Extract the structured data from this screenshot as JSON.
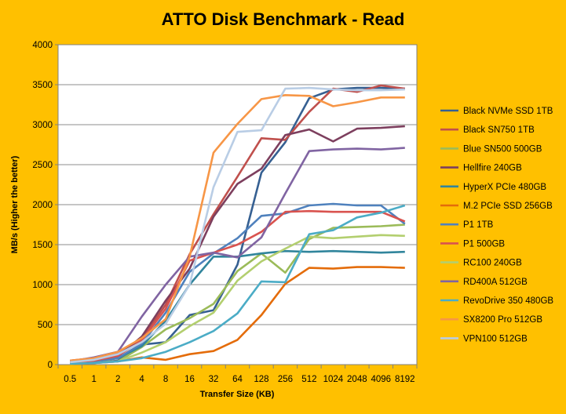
{
  "chart_data": {
    "type": "line",
    "title": "ATTO Disk Benchmark - Read",
    "xlabel": "Transfer Size (KB)",
    "ylabel": "MB/s (Higher the better)",
    "ylim": [
      0,
      4000
    ],
    "yticks": [
      "0",
      "500",
      "1000",
      "1500",
      "2000",
      "2500",
      "3000",
      "3500",
      "4000"
    ],
    "grid": true,
    "legend": "right",
    "categories": [
      "0.5",
      "1",
      "2",
      "4",
      "8",
      "16",
      "32",
      "64",
      "128",
      "256",
      "512",
      "1024",
      "2048",
      "4096",
      "8192"
    ],
    "series": [
      {
        "name": "Black NVMe SSD 1TB",
        "color": "#366092",
        "values": [
          10,
          20,
          50,
          250,
          280,
          620,
          680,
          1250,
          2400,
          2780,
          3330,
          3440,
          3460,
          3460,
          3450
        ]
      },
      {
        "name": "Black SN750 1TB",
        "color": "#C0504D",
        "values": [
          50,
          80,
          150,
          320,
          750,
          1380,
          1880,
          2350,
          2830,
          2810,
          3160,
          3450,
          3410,
          3490,
          3450
        ]
      },
      {
        "name": "Blue SN500 500GB",
        "color": "#9BBB59",
        "values": [
          20,
          30,
          40,
          220,
          440,
          580,
          760,
          1170,
          1390,
          1150,
          1570,
          1710,
          1720,
          1730,
          1750
        ]
      },
      {
        "name": "Hellfire 240GB",
        "color": "#7D3F5E",
        "values": [
          20,
          40,
          100,
          350,
          800,
          1200,
          1850,
          2260,
          2450,
          2870,
          2940,
          2790,
          2950,
          2960,
          2980
        ]
      },
      {
        "name": "HyperX PCIe 480GB",
        "color": "#31859C",
        "values": [
          20,
          40,
          80,
          230,
          550,
          1000,
          1350,
          1350,
          1390,
          1420,
          1410,
          1420,
          1410,
          1400,
          1410
        ]
      },
      {
        "name": "M.2 PCIe SSD 256GB",
        "color": "#E46C0A",
        "values": [
          10,
          20,
          40,
          90,
          60,
          130,
          170,
          310,
          620,
          1010,
          1210,
          1200,
          1220,
          1220,
          1210
        ]
      },
      {
        "name": "P1 1TB",
        "color": "#4F81BD",
        "values": [
          20,
          40,
          80,
          260,
          650,
          1160,
          1390,
          1580,
          1860,
          1890,
          1990,
          2010,
          1990,
          1990,
          1760
        ]
      },
      {
        "name": "P1 500GB",
        "color": "#D9534F",
        "values": [
          30,
          50,
          110,
          300,
          700,
          1300,
          1400,
          1500,
          1660,
          1910,
          1920,
          1910,
          1910,
          1910,
          1790
        ]
      },
      {
        "name": "RC100 240GB",
        "color": "#B3CF6F",
        "values": [
          10,
          20,
          40,
          150,
          280,
          480,
          650,
          1050,
          1290,
          1450,
          1600,
          1580,
          1600,
          1620,
          1610
        ]
      },
      {
        "name": "RD400A 512GB",
        "color": "#8064A2",
        "values": [
          40,
          90,
          160,
          600,
          1000,
          1350,
          1400,
          1340,
          1590,
          2140,
          2670,
          2690,
          2700,
          2690,
          2710
        ]
      },
      {
        "name": "RevoDrive 350 480GB",
        "color": "#4BACC6",
        "values": [
          10,
          20,
          40,
          80,
          160,
          280,
          420,
          640,
          1040,
          1030,
          1630,
          1680,
          1840,
          1900,
          1990
        ]
      },
      {
        "name": "SX8200 Pro 512GB",
        "color": "#F79646",
        "values": [
          50,
          80,
          160,
          330,
          570,
          1350,
          2650,
          3010,
          3320,
          3370,
          3360,
          3230,
          3280,
          3340,
          3340
        ]
      },
      {
        "name": "VPN100 512GB",
        "color": "#B9CDE5",
        "values": [
          30,
          60,
          130,
          280,
          510,
          1000,
          2220,
          2910,
          2930,
          3450,
          3460,
          3440,
          3430,
          3430,
          3440
        ]
      }
    ]
  }
}
